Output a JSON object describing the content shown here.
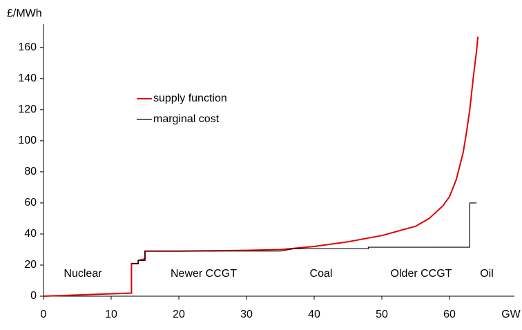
{
  "chart_data": {
    "type": "line",
    "y_label": "£/MWh",
    "x_label": "GW",
    "xlim": [
      0,
      70
    ],
    "xticks": [
      0,
      10,
      20,
      30,
      40,
      50,
      60
    ],
    "ylim": [
      0,
      175
    ],
    "yticks": [
      0,
      20,
      40,
      60,
      80,
      100,
      120,
      140,
      160
    ],
    "legend": "upper-left",
    "annotations": [
      "Nuclear",
      "Newer CCGT",
      "Coal",
      "Older CCGT",
      "Oil"
    ],
    "series": [
      {
        "name": "supply function",
        "color": "#e00000",
        "x": [
          0,
          13,
          13,
          14,
          14,
          15,
          15,
          20,
          30,
          35,
          40,
          45,
          50,
          55,
          57,
          59,
          60,
          61,
          62,
          62.5,
          63,
          63.5,
          64,
          64.2
        ],
        "values": [
          0,
          2,
          21,
          21,
          23,
          24,
          29,
          29,
          29.5,
          30,
          32,
          35,
          39,
          45,
          50,
          58,
          64,
          75,
          92,
          105,
          120,
          140,
          158,
          167
        ]
      },
      {
        "name": "marginal cost",
        "color": "#000000",
        "x": [
          13,
          14,
          14,
          15,
          15,
          35,
          37,
          48,
          48,
          63,
          63,
          64
        ],
        "values": [
          21,
          21,
          23,
          23,
          29,
          29,
          30.5,
          30.5,
          31.5,
          31.5,
          60,
          60
        ]
      }
    ]
  }
}
